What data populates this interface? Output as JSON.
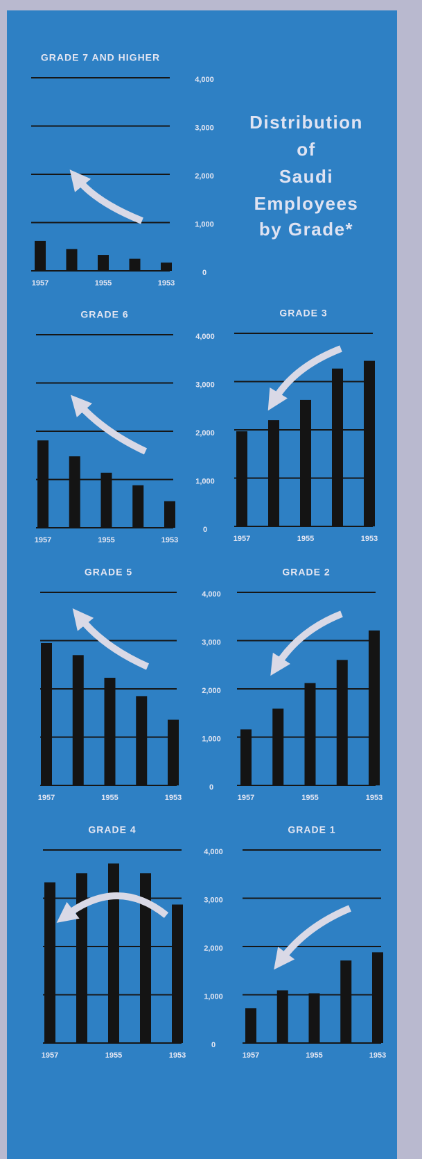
{
  "title": [
    "Distribution",
    "of",
    "Saudi",
    "Employees",
    "by Grade*"
  ],
  "chart_data": [
    {
      "type": "bar",
      "title": "GRADE 7 AND HIGHER",
      "categories": [
        "1957",
        null,
        "1955",
        null,
        "1953"
      ],
      "values": [
        620,
        450,
        330,
        250,
        170
      ],
      "color": "#141414",
      "ylim": [
        0,
        4000
      ],
      "yticks": [
        0,
        {
          "value": 1000,
          "label": "1,000"
        },
        {
          "value": 2000,
          "label": "2,000"
        },
        {
          "value": 3000,
          "label": "3,000"
        },
        {
          "value": 4000,
          "label": "4,000"
        }
      ],
      "grid": true
    },
    {
      "type": "bar",
      "title": "GRADE 6",
      "categories": [
        "1957",
        null,
        "1955",
        null,
        "1953"
      ],
      "values": [
        1810,
        1480,
        1140,
        880,
        550
      ],
      "color": "#141414",
      "ylim": [
        0,
        4000
      ],
      "yticks": [
        0,
        {
          "value": 1000,
          "label": "1,000"
        },
        {
          "value": 2000,
          "label": "2,000"
        },
        {
          "value": 3000,
          "label": "3,000"
        },
        {
          "value": 4000,
          "label": "4,000"
        }
      ],
      "grid": true
    },
    {
      "type": "bar",
      "title": "GRADE 3",
      "categories": [
        "1957",
        null,
        "1955",
        null,
        "1953"
      ],
      "values": [
        1970,
        2200,
        2620,
        3270,
        3430
      ],
      "color": "#141414",
      "grid": true
    },
    {
      "type": "bar",
      "title": "GRADE 5",
      "categories": [
        "1957",
        null,
        "1955",
        null,
        "1953"
      ],
      "values": [
        2950,
        2700,
        2230,
        1850,
        1360
      ],
      "color": "#141414",
      "ylim": [
        0,
        4000
      ],
      "yticks": [
        0,
        {
          "value": 1000,
          "label": "1,000"
        },
        {
          "value": 2000,
          "label": "2,000"
        },
        {
          "value": 3000,
          "label": "3,000"
        },
        {
          "value": 4000,
          "label": "4,000"
        }
      ],
      "grid": true
    },
    {
      "type": "bar",
      "title": "GRADE 2",
      "categories": [
        "1957",
        null,
        "1955",
        null,
        "1953"
      ],
      "values": [
        1160,
        1590,
        2120,
        2600,
        3210
      ],
      "color": "#141414",
      "grid": true
    },
    {
      "type": "bar",
      "title": "GRADE 4",
      "categories": [
        "1957",
        null,
        "1955",
        null,
        "1953"
      ],
      "values": [
        3330,
        3520,
        3720,
        3520,
        2870
      ],
      "color": "#141414",
      "ylim": [
        0,
        4000
      ],
      "yticks": [
        0,
        {
          "value": 1000,
          "label": "1,000"
        },
        {
          "value": 2000,
          "label": "2,000"
        },
        {
          "value": 3000,
          "label": "3,000"
        },
        {
          "value": 4000,
          "label": "4,000"
        }
      ],
      "grid": true
    },
    {
      "type": "bar",
      "title": "GRADE 1",
      "categories": [
        "1957",
        null,
        "1955",
        null,
        "1953"
      ],
      "values": [
        720,
        1090,
        1030,
        1710,
        1880
      ],
      "color": "#141414",
      "grid": true
    }
  ]
}
